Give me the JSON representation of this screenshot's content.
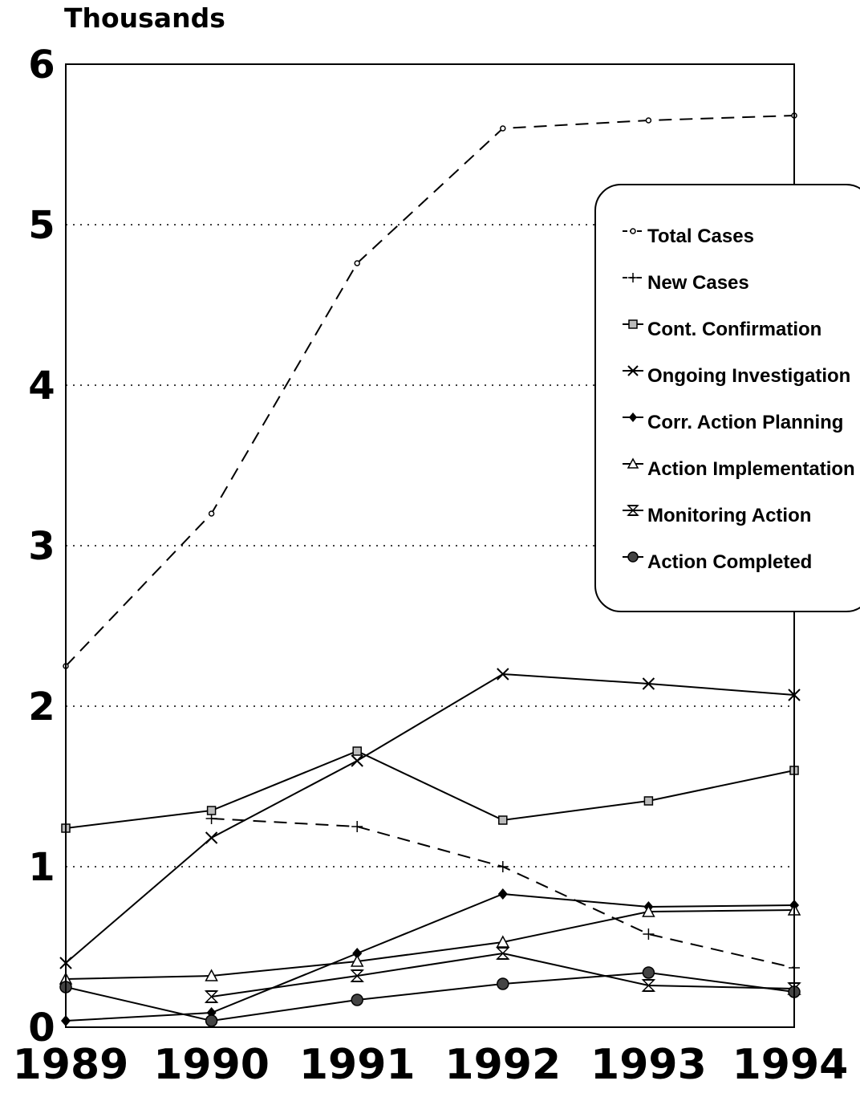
{
  "chart_data": {
    "type": "line",
    "ylabel": "Thousands",
    "xlabel": "",
    "title": "",
    "ylim": [
      0,
      6
    ],
    "yticks": [
      "0",
      "1",
      "2",
      "3",
      "4",
      "5",
      "6"
    ],
    "categories": [
      "1989",
      "1990",
      "1991",
      "1992",
      "1993",
      "1994"
    ],
    "grid": "horizontal dotted",
    "legend_position": "right",
    "series": [
      {
        "name": "Total Cases",
        "values": [
          2.25,
          3.2,
          4.76,
          5.6,
          5.65,
          5.68
        ],
        "style": "dashed",
        "marker": "dot"
      },
      {
        "name": "New Cases",
        "values": [
          null,
          1.3,
          1.25,
          1.0,
          0.58,
          0.37
        ],
        "style": "dashed",
        "marker": "plus"
      },
      {
        "name": "Cont. Confirmation",
        "values": [
          1.24,
          1.35,
          1.72,
          1.29,
          1.41,
          1.6
        ],
        "style": "solid",
        "marker": "square"
      },
      {
        "name": "Ongoing Investigation",
        "values": [
          0.4,
          1.18,
          1.66,
          2.2,
          2.14,
          2.07
        ],
        "style": "solid",
        "marker": "x"
      },
      {
        "name": "Corr. Action Planning",
        "values": [
          0.04,
          0.09,
          0.46,
          0.83,
          0.75,
          0.76
        ],
        "style": "solid",
        "marker": "diamond"
      },
      {
        "name": "Action Implementation",
        "values": [
          0.3,
          0.32,
          0.41,
          0.53,
          0.72,
          0.73
        ],
        "style": "solid",
        "marker": "triangle"
      },
      {
        "name": "Monitoring Action",
        "values": [
          null,
          0.19,
          0.32,
          0.46,
          0.26,
          0.24
        ],
        "style": "solid",
        "marker": "hourglass"
      },
      {
        "name": "Action Completed",
        "values": [
          0.25,
          0.04,
          0.17,
          0.27,
          0.34,
          0.22
        ],
        "style": "solid",
        "marker": "circle"
      }
    ]
  }
}
